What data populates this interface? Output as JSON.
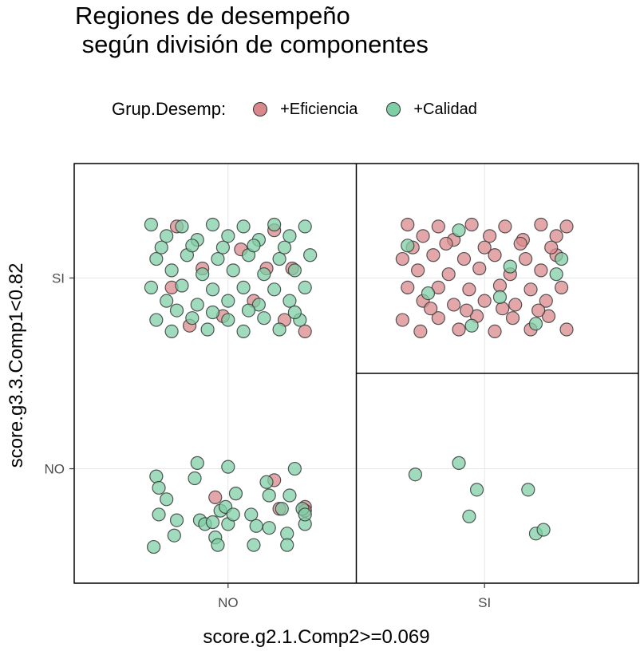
{
  "chart_data": {
    "type": "scatter",
    "title": "Regiones de desempeño\n según división de componentes",
    "xlabel": "score.g2.1.Comp2>=0.069",
    "ylabel": "score.g3.3.Comp1<0.82",
    "x_categories": [
      "NO",
      "SI"
    ],
    "y_categories": [
      "NO",
      "SI"
    ],
    "grid": true,
    "legend": {
      "title": "Grup.Desemp:",
      "placement": "top",
      "entries": [
        {
          "label": "+Eficiencia",
          "color": "#D9898C"
        },
        {
          "label": "+Calidad",
          "color": "#7FCFA6"
        }
      ]
    },
    "regions": [
      {
        "x": "NO",
        "y": "SI"
      },
      {
        "x": "SI",
        "y": "SI"
      },
      {
        "x": "NO",
        "y": "NO"
      },
      {
        "x": "SI",
        "y": "NO"
      }
    ],
    "series": [
      {
        "name": "+Eficiencia",
        "points": [
          {
            "x": 0.8,
            "y": 2.27
          },
          {
            "x": 0.9,
            "y": 2.05
          },
          {
            "x": 0.85,
            "y": 1.75
          },
          {
            "x": 1.05,
            "y": 2.15
          },
          {
            "x": 1.1,
            "y": 1.88
          },
          {
            "x": 1.18,
            "y": 2.25
          },
          {
            "x": 1.25,
            "y": 2.05
          },
          {
            "x": 1.3,
            "y": 1.72
          },
          {
            "x": 0.78,
            "y": 1.95
          },
          {
            "x": 0.98,
            "y": 1.8
          },
          {
            "x": 1.15,
            "y": 2.05
          },
          {
            "x": 1.22,
            "y": 1.78
          },
          {
            "x": 0.95,
            "y": 0.85
          },
          {
            "x": 1.18,
            "y": 0.94
          },
          {
            "x": 1.2,
            "y": 0.79
          },
          {
            "x": 1.3,
            "y": 0.8
          },
          {
            "x": 1.3,
            "y": 0.78
          },
          {
            "x": 1.7,
            "y": 2.28
          },
          {
            "x": 1.76,
            "y": 2.22
          },
          {
            "x": 1.82,
            "y": 2.27
          },
          {
            "x": 1.88,
            "y": 2.2
          },
          {
            "x": 1.95,
            "y": 2.28
          },
          {
            "x": 2.02,
            "y": 2.22
          },
          {
            "x": 2.08,
            "y": 2.27
          },
          {
            "x": 2.15,
            "y": 2.2
          },
          {
            "x": 2.22,
            "y": 2.28
          },
          {
            "x": 2.28,
            "y": 2.22
          },
          {
            "x": 2.32,
            "y": 2.27
          },
          {
            "x": 1.68,
            "y": 2.1
          },
          {
            "x": 1.74,
            "y": 2.04
          },
          {
            "x": 1.8,
            "y": 2.12
          },
          {
            "x": 1.86,
            "y": 2.02
          },
          {
            "x": 1.92,
            "y": 2.1
          },
          {
            "x": 1.98,
            "y": 2.05
          },
          {
            "x": 2.04,
            "y": 2.12
          },
          {
            "x": 2.1,
            "y": 2.02
          },
          {
            "x": 2.16,
            "y": 2.1
          },
          {
            "x": 2.22,
            "y": 2.04
          },
          {
            "x": 2.28,
            "y": 2.12
          },
          {
            "x": 1.7,
            "y": 1.95
          },
          {
            "x": 1.76,
            "y": 1.88
          },
          {
            "x": 1.82,
            "y": 1.95
          },
          {
            "x": 1.88,
            "y": 1.86
          },
          {
            "x": 1.94,
            "y": 1.94
          },
          {
            "x": 2.0,
            "y": 1.88
          },
          {
            "x": 2.06,
            "y": 1.96
          },
          {
            "x": 2.12,
            "y": 1.86
          },
          {
            "x": 2.18,
            "y": 1.94
          },
          {
            "x": 2.24,
            "y": 1.88
          },
          {
            "x": 2.3,
            "y": 1.95
          },
          {
            "x": 1.68,
            "y": 1.78
          },
          {
            "x": 1.75,
            "y": 1.72
          },
          {
            "x": 1.82,
            "y": 1.79
          },
          {
            "x": 1.9,
            "y": 1.73
          },
          {
            "x": 1.97,
            "y": 1.8
          },
          {
            "x": 2.04,
            "y": 1.72
          },
          {
            "x": 2.11,
            "y": 1.79
          },
          {
            "x": 2.18,
            "y": 1.73
          },
          {
            "x": 2.25,
            "y": 1.8
          },
          {
            "x": 2.32,
            "y": 1.73
          },
          {
            "x": 1.72,
            "y": 2.16
          },
          {
            "x": 1.85,
            "y": 2.18
          },
          {
            "x": 2.0,
            "y": 2.16
          },
          {
            "x": 2.14,
            "y": 2.18
          },
          {
            "x": 2.26,
            "y": 2.16
          },
          {
            "x": 1.79,
            "y": 1.84
          },
          {
            "x": 1.93,
            "y": 1.83
          },
          {
            "x": 2.07,
            "y": 1.84
          },
          {
            "x": 2.21,
            "y": 1.83
          }
        ]
      },
      {
        "name": "+Calidad",
        "points": [
          {
            "x": 0.7,
            "y": 2.28
          },
          {
            "x": 0.76,
            "y": 2.22
          },
          {
            "x": 0.82,
            "y": 2.27
          },
          {
            "x": 0.88,
            "y": 2.2
          },
          {
            "x": 0.94,
            "y": 2.28
          },
          {
            "x": 1.0,
            "y": 2.22
          },
          {
            "x": 1.06,
            "y": 2.27
          },
          {
            "x": 1.12,
            "y": 2.2
          },
          {
            "x": 1.18,
            "y": 2.28
          },
          {
            "x": 1.24,
            "y": 2.22
          },
          {
            "x": 1.3,
            "y": 2.27
          },
          {
            "x": 0.72,
            "y": 2.1
          },
          {
            "x": 0.78,
            "y": 2.04
          },
          {
            "x": 0.84,
            "y": 2.12
          },
          {
            "x": 0.9,
            "y": 2.02
          },
          {
            "x": 0.96,
            "y": 2.1
          },
          {
            "x": 1.02,
            "y": 2.04
          },
          {
            "x": 1.08,
            "y": 2.12
          },
          {
            "x": 1.14,
            "y": 2.02
          },
          {
            "x": 1.2,
            "y": 2.1
          },
          {
            "x": 1.26,
            "y": 2.04
          },
          {
            "x": 1.32,
            "y": 2.12
          },
          {
            "x": 0.7,
            "y": 1.95
          },
          {
            "x": 0.76,
            "y": 1.88
          },
          {
            "x": 0.82,
            "y": 1.96
          },
          {
            "x": 0.88,
            "y": 1.86
          },
          {
            "x": 0.94,
            "y": 1.94
          },
          {
            "x": 1.0,
            "y": 1.88
          },
          {
            "x": 1.06,
            "y": 1.95
          },
          {
            "x": 1.12,
            "y": 1.86
          },
          {
            "x": 1.18,
            "y": 1.94
          },
          {
            "x": 1.24,
            "y": 1.88
          },
          {
            "x": 1.3,
            "y": 1.95
          },
          {
            "x": 0.72,
            "y": 1.78
          },
          {
            "x": 0.78,
            "y": 1.72
          },
          {
            "x": 0.86,
            "y": 1.79
          },
          {
            "x": 0.92,
            "y": 1.73
          },
          {
            "x": 1.0,
            "y": 1.78
          },
          {
            "x": 1.06,
            "y": 1.72
          },
          {
            "x": 1.14,
            "y": 1.79
          },
          {
            "x": 1.2,
            "y": 1.73
          },
          {
            "x": 1.28,
            "y": 1.78
          },
          {
            "x": 0.74,
            "y": 2.16
          },
          {
            "x": 0.86,
            "y": 2.17
          },
          {
            "x": 0.98,
            "y": 2.16
          },
          {
            "x": 1.1,
            "y": 2.17
          },
          {
            "x": 1.22,
            "y": 2.16
          },
          {
            "x": 0.8,
            "y": 1.83
          },
          {
            "x": 0.94,
            "y": 1.82
          },
          {
            "x": 1.08,
            "y": 1.83
          },
          {
            "x": 1.26,
            "y": 1.82
          },
          {
            "x": 1.7,
            "y": 2.17
          },
          {
            "x": 1.9,
            "y": 2.25
          },
          {
            "x": 2.1,
            "y": 2.06
          },
          {
            "x": 2.28,
            "y": 2.02
          },
          {
            "x": 1.78,
            "y": 1.92
          },
          {
            "x": 2.06,
            "y": 1.9
          },
          {
            "x": 2.2,
            "y": 1.76
          },
          {
            "x": 1.95,
            "y": 1.75
          },
          {
            "x": 2.3,
            "y": 2.1
          },
          {
            "x": 0.72,
            "y": 0.96
          },
          {
            "x": 0.73,
            "y": 0.9
          },
          {
            "x": 0.76,
            "y": 0.84
          },
          {
            "x": 0.73,
            "y": 0.76
          },
          {
            "x": 0.71,
            "y": 0.59
          },
          {
            "x": 0.79,
            "y": 0.65
          },
          {
            "x": 0.8,
            "y": 0.73
          },
          {
            "x": 0.88,
            "y": 1.03
          },
          {
            "x": 0.87,
            "y": 0.95
          },
          {
            "x": 0.89,
            "y": 0.73
          },
          {
            "x": 0.91,
            "y": 0.71
          },
          {
            "x": 0.94,
            "y": 0.72
          },
          {
            "x": 0.97,
            "y": 0.78
          },
          {
            "x": 0.99,
            "y": 0.8
          },
          {
            "x": 0.95,
            "y": 0.64
          },
          {
            "x": 0.96,
            "y": 0.6
          },
          {
            "x": 1.0,
            "y": 1.01
          },
          {
            "x": 1.03,
            "y": 0.87
          },
          {
            "x": 1.0,
            "y": 0.71
          },
          {
            "x": 1.02,
            "y": 0.76
          },
          {
            "x": 1.09,
            "y": 0.76
          },
          {
            "x": 1.11,
            "y": 0.7
          },
          {
            "x": 1.1,
            "y": 0.6
          },
          {
            "x": 1.16,
            "y": 0.86
          },
          {
            "x": 1.16,
            "y": 0.69
          },
          {
            "x": 1.15,
            "y": 0.93
          },
          {
            "x": 1.21,
            "y": 0.79
          },
          {
            "x": 1.24,
            "y": 0.86
          },
          {
            "x": 1.23,
            "y": 0.66
          },
          {
            "x": 1.23,
            "y": 0.6
          },
          {
            "x": 1.26,
            "y": 1.0
          },
          {
            "x": 1.29,
            "y": 0.79
          },
          {
            "x": 1.3,
            "y": 0.71
          },
          {
            "x": 1.3,
            "y": 0.76
          },
          {
            "x": 1.73,
            "y": 0.97
          },
          {
            "x": 1.9,
            "y": 1.03
          },
          {
            "x": 1.97,
            "y": 0.89
          },
          {
            "x": 1.94,
            "y": 0.75
          },
          {
            "x": 2.17,
            "y": 0.89
          },
          {
            "x": 2.2,
            "y": 0.66
          },
          {
            "x": 2.23,
            "y": 0.68
          }
        ]
      }
    ]
  }
}
